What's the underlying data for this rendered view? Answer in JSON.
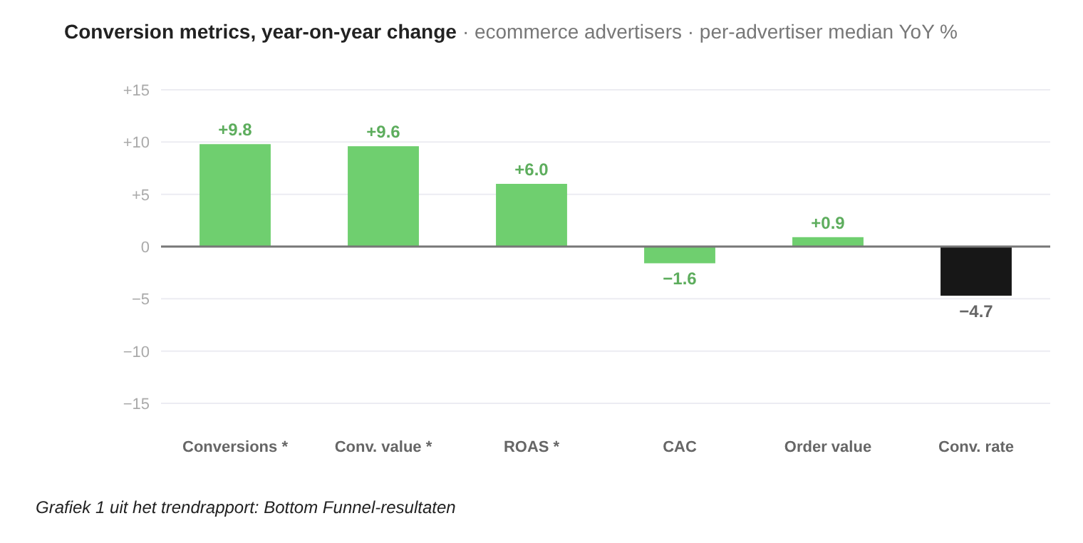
{
  "chart_data": {
    "type": "bar",
    "title": "Conversion metrics, year-on-year change",
    "subtitle": "· ecommerce advertisers · per-advertiser median YoY %",
    "categories": [
      "Conversions *",
      "Conv. value *",
      "ROAS *",
      "CAC",
      "Order value",
      "Conv. rate"
    ],
    "values": [
      9.8,
      9.6,
      6.0,
      -1.6,
      0.9,
      -4.7
    ],
    "colors": [
      "#6fcf6f",
      "#6fcf6f",
      "#6fcf6f",
      "#6fcf6f",
      "#6fcf6f",
      "#171717"
    ],
    "value_labels": [
      "+9.8",
      "+9.6",
      "+6.0",
      "−1.6",
      "+0.9",
      "−4.7"
    ],
    "ylim": [
      -15,
      15
    ],
    "yticks": [
      {
        "value": -15,
        "label": "−15"
      },
      {
        "value": -10,
        "label": "−10"
      },
      {
        "value": -5,
        "label": "−5"
      },
      0,
      {
        "value": 5,
        "label": "+5"
      },
      {
        "value": 10,
        "label": "+10"
      },
      {
        "value": 15,
        "label": "+15"
      }
    ],
    "grid": "y",
    "annotations": [
      "Grafiek 1 uit het trendrapport: Bottom Funnel-resultaten"
    ]
  }
}
